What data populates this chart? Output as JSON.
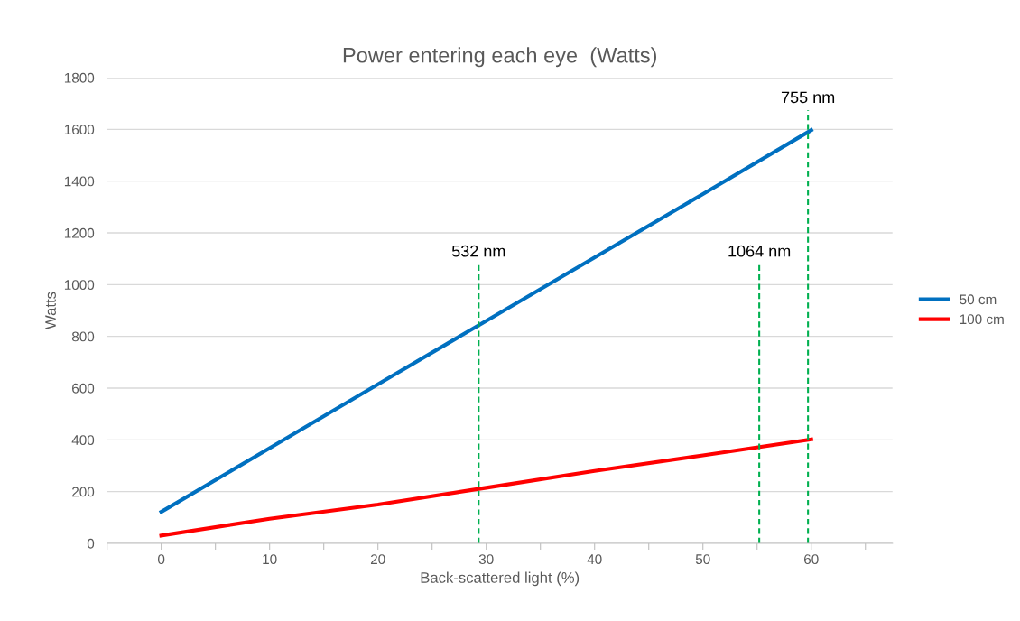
{
  "chart_data": {
    "type": "line",
    "title": "Power entering each eye  (Watts)",
    "xlabel": "Back-scattered light (%)",
    "ylabel": "Watts",
    "x": [
      0,
      10,
      20,
      30,
      40,
      50,
      60
    ],
    "series": [
      {
        "name": "50 cm",
        "color": "#0070c0",
        "values": [
          122,
          368,
          615,
          860,
          1105,
          1350,
          1597
        ]
      },
      {
        "name": "100 cm",
        "color": "#ff0000",
        "values": [
          30,
          95,
          150,
          215,
          280,
          340,
          402
        ]
      }
    ],
    "xlim": [
      -5,
      67.5
    ],
    "xticks": [
      {
        "value": -5,
        "label": null
      },
      0,
      {
        "value": 5,
        "label": null
      },
      10,
      {
        "value": 15,
        "label": null
      },
      20,
      {
        "value": 25,
        "label": null
      },
      30,
      {
        "value": 35,
        "label": null
      },
      40,
      {
        "value": 45,
        "label": null
      },
      50,
      {
        "value": 55,
        "label": null
      },
      60,
      {
        "value": 65,
        "label": null
      }
    ],
    "ylim": [
      0,
      1800
    ],
    "yticks": [
      0,
      200,
      400,
      600,
      800,
      1000,
      1200,
      1400,
      1600,
      1800
    ],
    "ref_lines": [
      {
        "axis": "x",
        "value": 29.3,
        "label": "532 nm",
        "color": "#00b050",
        "line_style": "dashed"
      },
      {
        "axis": "x",
        "value": 55.2,
        "label": "1064 nm",
        "color": "#00b050",
        "line_style": "dashed"
      },
      {
        "axis": "x",
        "value": 59.7,
        "label": "755 nm",
        "color": "#00b050",
        "line_style": "dashed"
      }
    ],
    "grid": "y",
    "legend": "right",
    "marker": "none",
    "line_style": "solid"
  }
}
